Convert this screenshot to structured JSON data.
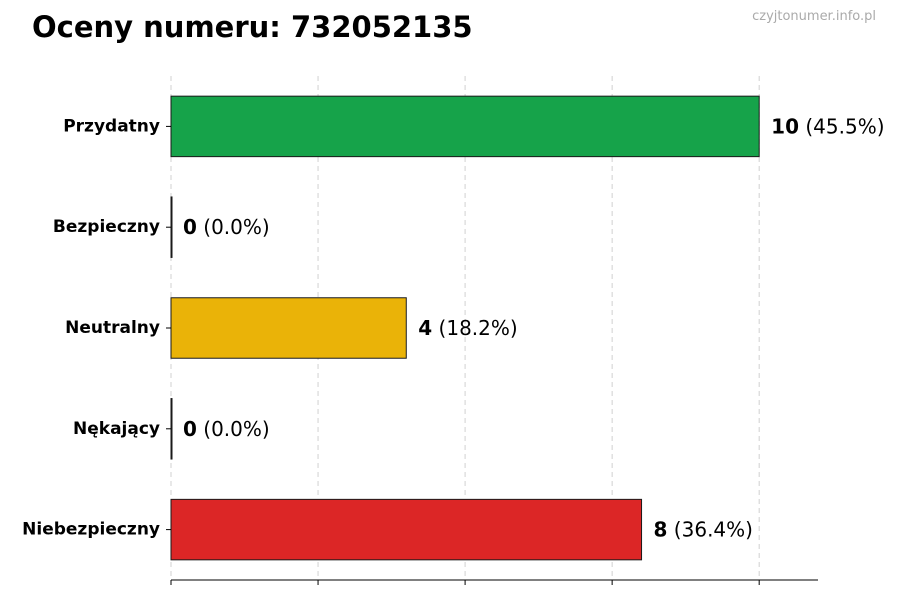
{
  "header": {
    "title": "Oceny numeru: 732052135",
    "watermark": "czyjtonumer.info.pl"
  },
  "chart_data": {
    "type": "bar",
    "orientation": "horizontal",
    "title": "Oceny numeru: 732052135",
    "xlabel": "",
    "ylabel": "",
    "xlim": [
      0,
      11
    ],
    "grid": true,
    "legend": "none",
    "categories": [
      "Przydatny",
      "Bezpieczny",
      "Neutralny",
      "Nękający",
      "Niebezpieczny"
    ],
    "values": [
      10,
      0,
      4,
      0,
      8
    ],
    "percent_labels": [
      "(45.5%)",
      "(0.0%)",
      "(18.2%)",
      "(0.0%)",
      "(36.4%)"
    ],
    "value_labels": [
      "10",
      "0",
      "4",
      "0",
      "8"
    ],
    "colors": [
      "#16a34a",
      "#16a34a",
      "#eab308",
      "#dc2626",
      "#dc2626"
    ]
  }
}
